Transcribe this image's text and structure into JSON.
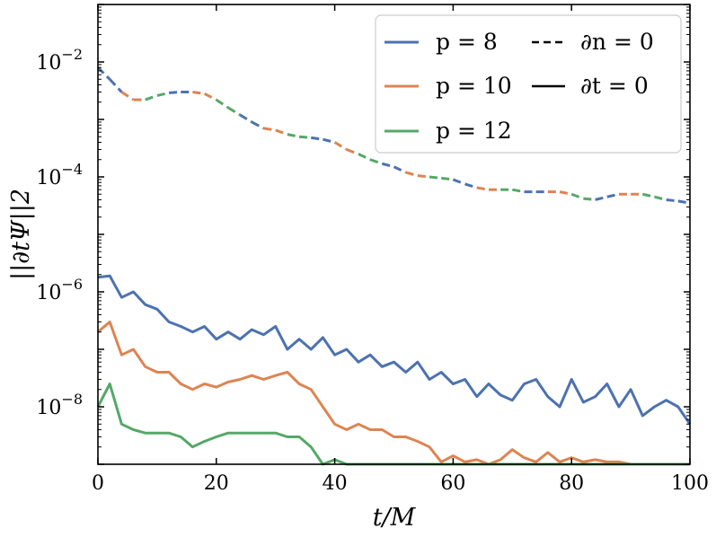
{
  "chart_data": {
    "type": "line",
    "xlabel": "t/M",
    "ylabel": "||∂tΨ||2",
    "xlim": [
      0,
      100
    ],
    "ylim": [
      1e-09,
      0.1
    ],
    "yscale": "log",
    "x_ticks": [
      0,
      20,
      40,
      60,
      80,
      100
    ],
    "x_tick_labels": [
      "0",
      "20",
      "40",
      "60",
      "80",
      "100"
    ],
    "y_ticks": [
      1e-08,
      1e-06,
      0.0001,
      0.01
    ],
    "y_tick_labels": [
      {
        "base": "10",
        "exp": "−8"
      },
      {
        "base": "10",
        "exp": "−6"
      },
      {
        "base": "10",
        "exp": "−4"
      },
      {
        "base": "10",
        "exp": "−2"
      }
    ],
    "grid": false,
    "legend_placement": "top-right",
    "legend": {
      "series": [
        {
          "label": "p = 8",
          "color": "#4c72b0"
        },
        {
          "label": "p = 10",
          "color": "#dd8452"
        },
        {
          "label": "p = 12",
          "color": "#55a868"
        }
      ],
      "styles": [
        {
          "label": "∂n = 0",
          "dash": "dashed"
        },
        {
          "label": "∂t = 0",
          "dash": "solid"
        }
      ]
    },
    "colors": {
      "p8": "#4c72b0",
      "p10": "#dd8452",
      "p12": "#55a868"
    },
    "series": [
      {
        "name": "p = 8 (∂t = 0)",
        "color": "#4c72b0",
        "style": "solid",
        "x": [
          0,
          2,
          4,
          6,
          8,
          10,
          12,
          14,
          16,
          18,
          20,
          22,
          24,
          26,
          28,
          30,
          32,
          34,
          36,
          38,
          40,
          42,
          44,
          46,
          48,
          50,
          52,
          54,
          56,
          58,
          60,
          62,
          64,
          66,
          68,
          70,
          72,
          74,
          76,
          78,
          80,
          82,
          84,
          86,
          88,
          90,
          92,
          94,
          96,
          98,
          100
        ],
        "y": [
          1.8e-06,
          1.9e-06,
          8e-07,
          1e-06,
          6e-07,
          5e-07,
          3e-07,
          2.5e-07,
          2e-07,
          2.5e-07,
          1.5e-07,
          2e-07,
          1.5e-07,
          2.2e-07,
          1.8e-07,
          2.5e-07,
          1e-07,
          1.5e-07,
          1e-07,
          1.6e-07,
          8e-08,
          1e-07,
          6e-08,
          8e-08,
          5e-08,
          6e-08,
          4e-08,
          6e-08,
          3e-08,
          4e-08,
          2.5e-08,
          3e-08,
          1.5e-08,
          2.5e-08,
          1.6e-08,
          1.3e-08,
          2.5e-08,
          3e-08,
          1.5e-08,
          1e-08,
          3e-08,
          1.2e-08,
          1.5e-08,
          2.5e-08,
          1e-08,
          2e-08,
          7e-09,
          1e-08,
          1.3e-08,
          1e-08,
          5e-09
        ]
      },
      {
        "name": "p = 10 (∂t = 0)",
        "color": "#dd8452",
        "style": "solid",
        "x": [
          0,
          2,
          4,
          6,
          8,
          10,
          12,
          14,
          16,
          18,
          20,
          22,
          24,
          26,
          28,
          30,
          32,
          34,
          36,
          38,
          40,
          42,
          44,
          46,
          48,
          50,
          52,
          54,
          56,
          58,
          60,
          62,
          64,
          66,
          68,
          70,
          72,
          74,
          76,
          78,
          80,
          82,
          84,
          86,
          88,
          90,
          92,
          94,
          96,
          98,
          100
        ],
        "y": [
          2e-07,
          3e-07,
          8e-08,
          1e-07,
          5e-08,
          4e-08,
          4e-08,
          2.5e-08,
          2e-08,
          2.5e-08,
          2.2e-08,
          2.7e-08,
          3e-08,
          3.5e-08,
          3e-08,
          3.5e-08,
          4e-08,
          2.5e-08,
          2e-08,
          1e-08,
          5e-09,
          4e-09,
          5e-09,
          4e-09,
          4e-09,
          3e-09,
          3e-09,
          2.5e-09,
          2e-09,
          1.1e-09,
          1.4e-09,
          1.1e-09,
          1.2e-09,
          1e-09,
          1.2e-09,
          1.8e-09,
          1.3e-09,
          1.1e-09,
          1.6e-09,
          1.1e-09,
          1.3e-09,
          1.1e-09,
          1.2e-09,
          1.1e-09,
          1.1e-09,
          1e-09,
          1e-09,
          1e-09,
          1e-09,
          1e-09,
          1e-09
        ]
      },
      {
        "name": "p = 12 (∂t = 0)",
        "color": "#55a868",
        "style": "solid",
        "x": [
          0,
          2,
          4,
          6,
          8,
          10,
          12,
          14,
          16,
          18,
          20,
          22,
          24,
          26,
          28,
          30,
          32,
          34,
          36,
          38,
          40,
          42,
          44,
          46,
          48,
          50,
          52,
          54,
          56,
          58,
          60,
          62,
          64,
          66,
          68,
          70,
          72,
          74,
          76,
          78,
          80,
          82,
          84,
          86,
          88,
          90,
          92,
          94,
          96,
          98,
          100
        ],
        "y": [
          1e-08,
          2.5e-08,
          5e-09,
          4e-09,
          3.5e-09,
          3.5e-09,
          3.5e-09,
          3e-09,
          2e-09,
          2.5e-09,
          3e-09,
          3.5e-09,
          3.5e-09,
          3.5e-09,
          3.5e-09,
          3.5e-09,
          3e-09,
          3e-09,
          2e-09,
          1e-09,
          1.2e-09,
          1e-09,
          1e-09,
          1e-09,
          1e-09,
          1e-09,
          1e-09,
          1e-09,
          1e-09,
          1e-09,
          1e-09,
          1e-09,
          1e-09,
          1e-09,
          1e-09,
          1e-09,
          1e-09,
          1e-09,
          1e-09,
          1e-09,
          1e-09,
          1e-09,
          1e-09,
          1e-09,
          1e-09,
          1e-09,
          1e-09,
          1e-09,
          1e-09,
          1e-09,
          1e-09
        ]
      },
      {
        "name": "∂n = 0 (all p, coincident)",
        "style": "dashed",
        "color_cycle": [
          "#4c72b0",
          "#dd8452",
          "#55a868"
        ],
        "x": [
          0,
          2,
          4,
          6,
          8,
          10,
          12,
          14,
          16,
          18,
          20,
          22,
          24,
          26,
          28,
          30,
          32,
          34,
          36,
          38,
          40,
          42,
          44,
          46,
          48,
          50,
          52,
          54,
          56,
          58,
          60,
          62,
          64,
          66,
          68,
          70,
          72,
          74,
          76,
          78,
          80,
          82,
          84,
          86,
          88,
          90,
          92,
          94,
          96,
          98,
          100
        ],
        "y": [
          0.008,
          0.005,
          0.003,
          0.0022,
          0.0022,
          0.0026,
          0.0029,
          0.003,
          0.003,
          0.0028,
          0.0022,
          0.0016,
          0.0012,
          0.0009,
          0.0007,
          0.00065,
          0.00055,
          0.0005,
          0.00048,
          0.00045,
          0.0004,
          0.0003,
          0.00025,
          0.0002,
          0.00017,
          0.00015,
          0.00012,
          0.000105,
          0.0001,
          9.5e-05,
          9e-05,
          7.5e-05,
          6.5e-05,
          6e-05,
          6e-05,
          6e-05,
          5.5e-05,
          5.5e-05,
          5.5e-05,
          5.5e-05,
          5e-05,
          4.2e-05,
          4e-05,
          4.5e-05,
          5e-05,
          5e-05,
          5e-05,
          4.5e-05,
          4e-05,
          3.8e-05,
          3.5e-05
        ]
      }
    ]
  }
}
